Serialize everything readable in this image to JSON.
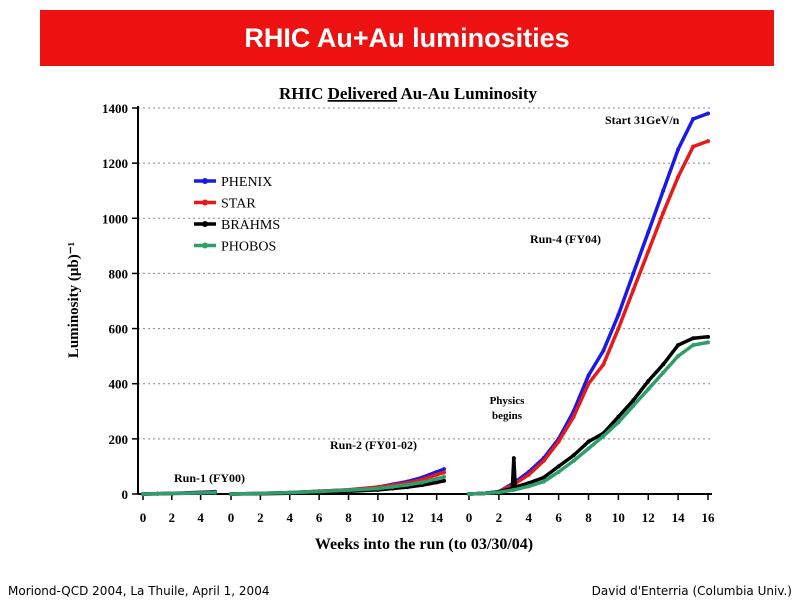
{
  "slide": {
    "banner_title": "RHIC Au+Au luminosities",
    "footer_left": "Moriond-QCD 2004, La Thuile, April 1, 2004",
    "footer_right": "David d'Enterria (Columbia Univ.)"
  },
  "chart_data": {
    "type": "line",
    "title": "RHIC Delivered Au-Au Luminosity",
    "title_underlined_word": "Delivered",
    "xlabel": "Weeks into the run  (to 03/30/04)",
    "ylabel": "Luminosity (μb)⁻¹",
    "ylim": [
      0,
      1400
    ],
    "yticks": [
      0,
      200,
      400,
      600,
      800,
      1000,
      1200,
      1400
    ],
    "grid": true,
    "legend_placement": "top-left",
    "colors": {
      "PHENIX": "#1a1ae6",
      "STAR": "#e61a1a",
      "BRAHMS": "#000000",
      "PHOBOS": "#2e9e6a"
    },
    "annotations": [
      "Run-1 (FY00)",
      "Run-2 (FY01-02)",
      "Run-4 (FY04)",
      "Physics begins",
      "Start 31GeV/n"
    ],
    "runs": [
      {
        "name": "Run-1 (FY00)",
        "xticks": [
          0,
          2,
          4
        ],
        "series": [
          {
            "name": "PHENIX",
            "x": [
              0,
              1,
              2,
              3,
              4,
              5
            ],
            "y": [
              0,
              1,
              2,
              4,
              6,
              8
            ]
          },
          {
            "name": "STAR",
            "x": [
              0,
              1,
              2,
              3,
              4,
              5
            ],
            "y": [
              0,
              1,
              2,
              3,
              5,
              7
            ]
          },
          {
            "name": "BRAHMS",
            "x": [
              0,
              1,
              2,
              3,
              4,
              5
            ],
            "y": [
              0,
              1,
              2,
              3,
              4,
              6
            ]
          },
          {
            "name": "PHOBOS",
            "x": [
              0,
              1,
              2,
              3,
              4,
              5
            ],
            "y": [
              0,
              1,
              2,
              3,
              4,
              5
            ]
          }
        ]
      },
      {
        "name": "Run-2 (FY01-02)",
        "xticks": [
          0,
          2,
          4,
          6,
          8,
          10,
          12,
          14
        ],
        "series": [
          {
            "name": "PHENIX",
            "x": [
              0,
              2,
              4,
              6,
              8,
              10,
              11,
              12,
              13,
              14,
              14.5
            ],
            "y": [
              0,
              2,
              5,
              10,
              15,
              25,
              35,
              45,
              60,
              80,
              90
            ]
          },
          {
            "name": "STAR",
            "x": [
              0,
              2,
              4,
              6,
              8,
              10,
              11,
              12,
              13,
              14,
              14.5
            ],
            "y": [
              0,
              2,
              5,
              10,
              15,
              25,
              32,
              40,
              52,
              70,
              78
            ]
          },
          {
            "name": "BRAHMS",
            "x": [
              0,
              2,
              4,
              6,
              8,
              10,
              11,
              12,
              13,
              14,
              14.5
            ],
            "y": [
              0,
              1,
              3,
              6,
              10,
              15,
              20,
              25,
              32,
              42,
              48
            ]
          },
          {
            "name": "PHOBOS",
            "x": [
              0,
              2,
              4,
              6,
              8,
              10,
              11,
              12,
              13,
              14,
              14.5
            ],
            "y": [
              0,
              2,
              5,
              9,
              14,
              20,
              26,
              33,
              42,
              55,
              62
            ]
          }
        ]
      },
      {
        "name": "Run-4 (FY04)",
        "xticks": [
          0,
          2,
          4,
          6,
          8,
          10,
          12,
          14,
          16
        ],
        "series": [
          {
            "name": "PHENIX",
            "x": [
              0,
              1,
              2,
              3,
              4,
              5,
              6,
              7,
              8,
              9,
              10,
              11,
              12,
              13,
              14,
              15,
              16
            ],
            "y": [
              0,
              2,
              8,
              40,
              80,
              130,
              200,
              300,
              430,
              520,
              650,
              800,
              950,
              1100,
              1250,
              1360,
              1380
            ]
          },
          {
            "name": "STAR",
            "x": [
              0,
              1,
              2,
              3,
              4,
              5,
              6,
              7,
              8,
              9,
              10,
              11,
              12,
              13,
              14,
              15,
              16
            ],
            "y": [
              0,
              2,
              8,
              35,
              70,
              120,
              190,
              280,
              400,
              470,
              600,
              740,
              880,
              1020,
              1150,
              1260,
              1280
            ]
          },
          {
            "name": "BRAHMS",
            "x": [
              0,
              1,
              2,
              2.9,
              3,
              3.1,
              4,
              5,
              6,
              7,
              8,
              9,
              10,
              11,
              12,
              13,
              14,
              15,
              16
            ],
            "y": [
              0,
              2,
              8,
              20,
              130,
              25,
              40,
              60,
              100,
              140,
              190,
              220,
              280,
              340,
              410,
              470,
              540,
              565,
              570
            ]
          },
          {
            "name": "PHOBOS",
            "x": [
              0,
              1,
              2,
              3,
              4,
              5,
              6,
              7,
              8,
              9,
              10,
              11,
              12,
              13,
              14,
              15,
              16
            ],
            "y": [
              0,
              2,
              6,
              15,
              28,
              45,
              80,
              120,
              165,
              210,
              260,
              320,
              380,
              440,
              500,
              540,
              550
            ]
          }
        ]
      }
    ]
  }
}
